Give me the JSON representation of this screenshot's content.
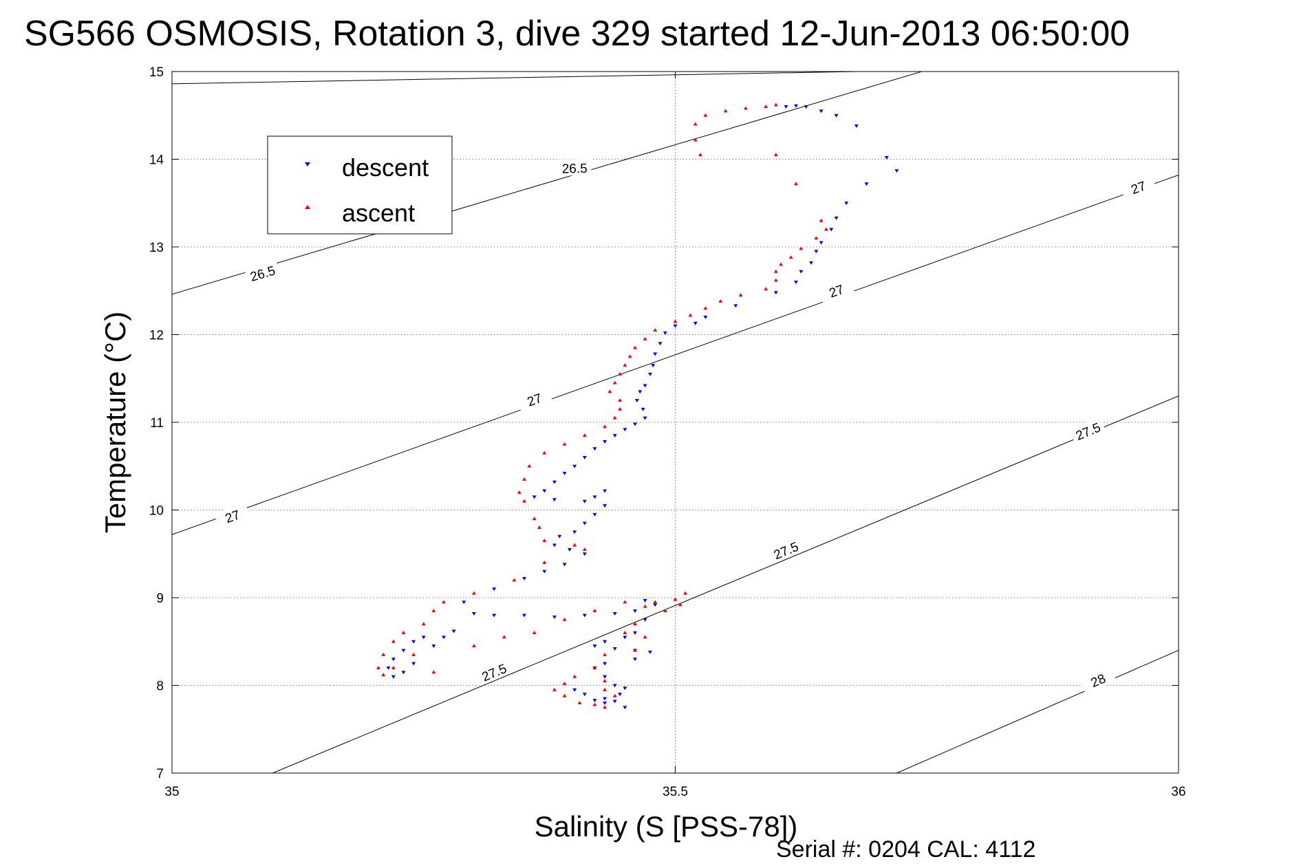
{
  "chart_data": {
    "type": "scatter",
    "title": "SG566 OSMOSIS, Rotation 3, dive 329 started 12-Jun-2013 06:50:00",
    "xlabel": "Salinity (S [PSS-78])",
    "ylabel": "Temperature (°C)",
    "xlim": [
      35,
      36
    ],
    "ylim": [
      7,
      15
    ],
    "xticks": [
      35,
      35.5,
      36
    ],
    "xtick_labels": [
      "35",
      "35.5",
      "36"
    ],
    "yticks": [
      7,
      8,
      9,
      10,
      11,
      12,
      13,
      14,
      15
    ],
    "ytick_labels": [
      "7",
      "8",
      "9",
      "10",
      "11",
      "12",
      "13",
      "14",
      "15"
    ],
    "grid": true,
    "legend_position": "upper-left",
    "footer": "Serial #: 0204  CAL: 4112",
    "density_contours": [
      {
        "label": "26.5",
        "line": [
          [
            35.0,
            14.86
          ],
          [
            35.68,
            15.0
          ]
        ],
        "label_at": [
          35.4,
          13.9
        ]
      },
      {
        "label": "26.5",
        "line": [
          [
            35.0,
            12.46
          ],
          [
            36.0,
            15.87
          ]
        ],
        "label_at": [
          35.09,
          12.7
        ]
      },
      {
        "label": "27",
        "line": [
          [
            35.0,
            9.72
          ],
          [
            36.0,
            13.82
          ]
        ],
        "label_at": [
          35.06,
          9.93
        ]
      },
      {
        "label": "27",
        "line": [
          [
            35.0,
            9.72
          ],
          [
            36.0,
            13.82
          ]
        ],
        "label_at": [
          35.36,
          11.26
        ]
      },
      {
        "label": "27",
        "line": [
          [
            35.0,
            9.72
          ],
          [
            36.0,
            13.82
          ]
        ],
        "label_at": [
          35.66,
          12.5
        ]
      },
      {
        "label": "27",
        "line": [
          [
            35.0,
            9.72
          ],
          [
            36.0,
            13.82
          ]
        ],
        "label_at": [
          35.96,
          13.68
        ]
      },
      {
        "label": "27.5",
        "line": [
          [
            35.1,
            7.0
          ],
          [
            36.0,
            11.3
          ]
        ],
        "label_at": [
          35.32,
          8.15
        ]
      },
      {
        "label": "27.5",
        "line": [
          [
            35.1,
            7.0
          ],
          [
            36.0,
            11.3
          ]
        ],
        "label_at": [
          35.61,
          9.54
        ]
      },
      {
        "label": "27.5",
        "line": [
          [
            35.1,
            7.0
          ],
          [
            36.0,
            11.3
          ]
        ],
        "label_at": [
          35.91,
          10.9
        ]
      },
      {
        "label": "28",
        "line": [
          [
            35.72,
            7.0
          ],
          [
            36.0,
            8.4
          ]
        ],
        "label_at": [
          35.92,
          8.06
        ]
      }
    ],
    "series": [
      {
        "name": "descent",
        "color": "#0000ff",
        "marker": "triangle-down",
        "values": [
          [
            35.61,
            14.6
          ],
          [
            35.62,
            14.61
          ],
          [
            35.63,
            14.6
          ],
          [
            35.645,
            14.55
          ],
          [
            35.66,
            14.5
          ],
          [
            35.68,
            14.38
          ],
          [
            35.71,
            14.02
          ],
          [
            35.72,
            13.87
          ],
          [
            35.69,
            13.72
          ],
          [
            35.67,
            13.5
          ],
          [
            35.66,
            13.33
          ],
          [
            35.655,
            13.2
          ],
          [
            35.645,
            13.05
          ],
          [
            35.64,
            12.95
          ],
          [
            35.635,
            12.82
          ],
          [
            35.625,
            12.72
          ],
          [
            35.62,
            12.6
          ],
          [
            35.6,
            12.48
          ],
          [
            35.56,
            12.33
          ],
          [
            35.53,
            12.2
          ],
          [
            35.52,
            12.13
          ],
          [
            35.5,
            12.1
          ],
          [
            35.49,
            12.02
          ],
          [
            35.485,
            11.9
          ],
          [
            35.48,
            11.78
          ],
          [
            35.478,
            11.65
          ],
          [
            35.475,
            11.55
          ],
          [
            35.47,
            11.42
          ],
          [
            35.465,
            11.35
          ],
          [
            35.462,
            11.25
          ],
          [
            35.468,
            11.15
          ],
          [
            35.47,
            11.05
          ],
          [
            35.46,
            10.98
          ],
          [
            35.45,
            10.92
          ],
          [
            35.44,
            10.85
          ],
          [
            35.43,
            10.78
          ],
          [
            35.42,
            10.7
          ],
          [
            35.41,
            10.6
          ],
          [
            35.4,
            10.5
          ],
          [
            35.39,
            10.42
          ],
          [
            35.38,
            10.32
          ],
          [
            35.37,
            10.22
          ],
          [
            35.36,
            10.15
          ],
          [
            35.38,
            10.12
          ],
          [
            35.41,
            10.1
          ],
          [
            35.43,
            10.22
          ],
          [
            35.42,
            10.15
          ],
          [
            35.43,
            10.05
          ],
          [
            35.42,
            9.95
          ],
          [
            35.41,
            9.85
          ],
          [
            35.4,
            9.75
          ],
          [
            35.385,
            9.7
          ],
          [
            35.38,
            9.6
          ],
          [
            35.395,
            9.55
          ],
          [
            35.41,
            9.5
          ],
          [
            35.39,
            9.38
          ],
          [
            35.37,
            9.3
          ],
          [
            35.35,
            9.22
          ],
          [
            35.32,
            9.1
          ],
          [
            35.29,
            8.95
          ],
          [
            35.3,
            8.82
          ],
          [
            35.32,
            8.8
          ],
          [
            35.35,
            8.8
          ],
          [
            35.38,
            8.78
          ],
          [
            35.41,
            8.8
          ],
          [
            35.44,
            8.82
          ],
          [
            35.46,
            8.85
          ],
          [
            35.47,
            8.97
          ],
          [
            35.48,
            8.92
          ],
          [
            35.47,
            8.75
          ],
          [
            35.46,
            8.6
          ],
          [
            35.45,
            8.55
          ],
          [
            35.43,
            8.5
          ],
          [
            35.42,
            8.45
          ],
          [
            35.44,
            8.42
          ],
          [
            35.46,
            8.4
          ],
          [
            35.475,
            8.38
          ],
          [
            35.46,
            8.3
          ],
          [
            35.43,
            8.25
          ],
          [
            35.42,
            8.2
          ],
          [
            35.43,
            8.1
          ],
          [
            35.44,
            8.0
          ],
          [
            35.45,
            7.97
          ],
          [
            35.445,
            7.9
          ],
          [
            35.43,
            7.85
          ],
          [
            35.42,
            7.83
          ],
          [
            35.43,
            7.8
          ],
          [
            35.44,
            7.82
          ],
          [
            35.45,
            7.75
          ],
          [
            35.41,
            7.9
          ],
          [
            35.4,
            7.95
          ],
          [
            35.25,
            8.55
          ],
          [
            35.24,
            8.5
          ],
          [
            35.23,
            8.4
          ],
          [
            35.22,
            8.3
          ],
          [
            35.215,
            8.2
          ],
          [
            35.22,
            8.1
          ],
          [
            35.23,
            8.15
          ],
          [
            35.24,
            8.25
          ],
          [
            35.26,
            8.45
          ],
          [
            35.27,
            8.55
          ],
          [
            35.28,
            8.62
          ]
        ]
      },
      {
        "name": "ascent",
        "color": "#ff0000",
        "marker": "triangle-up",
        "values": [
          [
            35.6,
            14.62
          ],
          [
            35.59,
            14.6
          ],
          [
            35.57,
            14.58
          ],
          [
            35.55,
            14.55
          ],
          [
            35.53,
            14.5
          ],
          [
            35.52,
            14.4
          ],
          [
            35.52,
            14.22
          ],
          [
            35.525,
            14.05
          ],
          [
            35.6,
            14.05
          ],
          [
            35.62,
            13.72
          ],
          [
            35.645,
            13.3
          ],
          [
            35.65,
            13.2
          ],
          [
            35.64,
            13.1
          ],
          [
            35.625,
            12.98
          ],
          [
            35.615,
            12.88
          ],
          [
            35.605,
            12.8
          ],
          [
            35.6,
            12.72
          ],
          [
            35.6,
            12.62
          ],
          [
            35.59,
            12.52
          ],
          [
            35.565,
            12.45
          ],
          [
            35.545,
            12.38
          ],
          [
            35.53,
            12.3
          ],
          [
            35.515,
            12.22
          ],
          [
            35.5,
            12.15
          ],
          [
            35.48,
            12.05
          ],
          [
            35.47,
            11.95
          ],
          [
            35.46,
            11.85
          ],
          [
            35.455,
            11.75
          ],
          [
            35.45,
            11.65
          ],
          [
            35.445,
            11.55
          ],
          [
            35.44,
            11.45
          ],
          [
            35.435,
            11.35
          ],
          [
            35.445,
            11.25
          ],
          [
            35.445,
            11.15
          ],
          [
            35.44,
            11.05
          ],
          [
            35.43,
            10.95
          ],
          [
            35.41,
            10.85
          ],
          [
            35.39,
            10.75
          ],
          [
            35.37,
            10.65
          ],
          [
            35.355,
            10.5
          ],
          [
            35.35,
            10.35
          ],
          [
            35.345,
            10.2
          ],
          [
            35.35,
            10.1
          ],
          [
            35.36,
            9.9
          ],
          [
            35.365,
            9.8
          ],
          [
            35.37,
            9.65
          ],
          [
            35.4,
            9.6
          ],
          [
            35.41,
            9.55
          ],
          [
            35.37,
            9.4
          ],
          [
            35.34,
            9.2
          ],
          [
            35.3,
            9.05
          ],
          [
            35.27,
            8.95
          ],
          [
            35.26,
            8.85
          ],
          [
            35.25,
            8.7
          ],
          [
            35.23,
            8.6
          ],
          [
            35.22,
            8.5
          ],
          [
            35.21,
            8.35
          ],
          [
            35.205,
            8.2
          ],
          [
            35.21,
            8.12
          ],
          [
            35.22,
            8.2
          ],
          [
            35.24,
            8.35
          ],
          [
            35.26,
            8.15
          ],
          [
            35.3,
            8.45
          ],
          [
            35.33,
            8.55
          ],
          [
            35.36,
            8.6
          ],
          [
            35.39,
            8.75
          ],
          [
            35.42,
            8.85
          ],
          [
            35.45,
            8.95
          ],
          [
            35.47,
            8.9
          ],
          [
            35.48,
            8.95
          ],
          [
            35.5,
            8.98
          ],
          [
            35.51,
            9.05
          ],
          [
            35.505,
            8.92
          ],
          [
            35.49,
            8.85
          ],
          [
            35.46,
            8.7
          ],
          [
            35.45,
            8.6
          ],
          [
            35.47,
            8.55
          ],
          [
            35.46,
            8.4
          ],
          [
            35.43,
            8.35
          ],
          [
            35.42,
            8.2
          ],
          [
            35.4,
            8.1
          ],
          [
            35.39,
            8.02
          ],
          [
            35.38,
            7.95
          ],
          [
            35.39,
            7.88
          ],
          [
            35.405,
            7.8
          ],
          [
            35.42,
            7.78
          ],
          [
            35.43,
            7.75
          ],
          [
            35.44,
            7.88
          ],
          [
            35.43,
            7.95
          ],
          [
            35.43,
            8.05
          ]
        ]
      }
    ]
  }
}
